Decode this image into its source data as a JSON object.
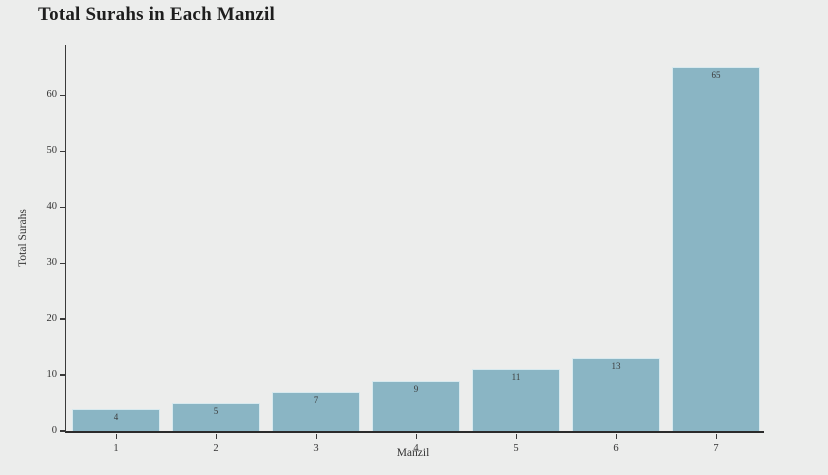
{
  "page": {
    "background_color": "#ecedec",
    "text_color": "#333333"
  },
  "chart_data": {
    "type": "bar",
    "title": "Total Surahs in Each Manzil",
    "xlabel": "Manzil",
    "ylabel": "Total Surahs",
    "categories": [
      "1",
      "2",
      "3",
      "4",
      "5",
      "6",
      "7"
    ],
    "values": [
      4,
      5,
      7,
      9,
      11,
      13,
      65
    ],
    "bar_value_labels": [
      "4",
      "5",
      "7",
      "9",
      "11",
      "13",
      "65"
    ],
    "yticks": [
      0,
      10,
      20,
      30,
      40,
      50,
      60
    ],
    "ylim": [
      0,
      69
    ],
    "grid": false,
    "legend": "none",
    "bar_color": "#8ab5c4",
    "bar_edge_color": "#d7e9ee",
    "spine_color": "#3a3a3a",
    "label_color": "#3b3b3b"
  }
}
